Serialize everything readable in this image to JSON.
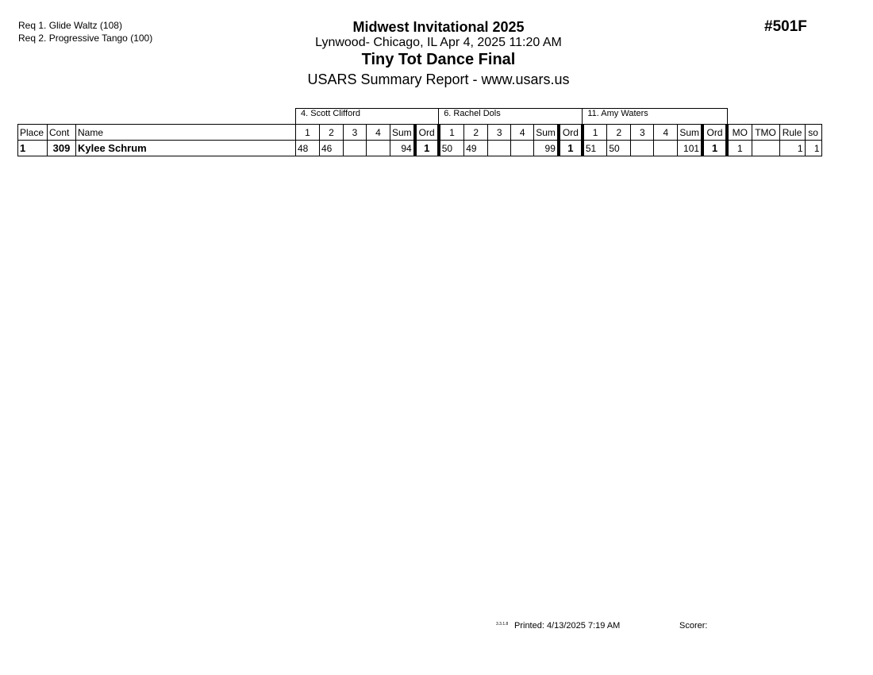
{
  "requirements": [
    "Req  1.  Glide Waltz (108)",
    "Req  2.  Progressive Tango (100)"
  ],
  "header": {
    "title": "Midwest Invitational 2025",
    "location": "Lynwood- Chicago, IL  Apr 4, 2025  11:20 AM",
    "event": "Tiny Tot Dance Final",
    "report": "USARS Summary Report - www.usars.us",
    "event_number": "#501F"
  },
  "table": {
    "judges": [
      "4.  Scott Clifford",
      "6.  Rachel Dols",
      "11.  Amy Waters"
    ],
    "columns": {
      "place": "Place",
      "cont": "Cont",
      "name": "Name",
      "scores": [
        "1",
        "2",
        "3",
        "4"
      ],
      "sum": "Sum",
      "ord": "Ord",
      "mo": "MO",
      "tmo": "TMO",
      "rule": "Rule",
      "so": "so"
    },
    "rows": [
      {
        "place": "1",
        "cont": "309",
        "name": "Kylee Schrum",
        "judges": [
          {
            "scores": [
              "48",
              "46",
              "",
              ""
            ],
            "sum": "94",
            "ord": "1"
          },
          {
            "scores": [
              "50",
              "49",
              "",
              ""
            ],
            "sum": "99",
            "ord": "1"
          },
          {
            "scores": [
              "51",
              "50",
              "",
              ""
            ],
            "sum": "101",
            "ord": "1"
          }
        ],
        "mo": "1",
        "tmo": "",
        "rule": "1",
        "so": "1"
      }
    ]
  },
  "footer": {
    "version": "3.3.1.8",
    "printed": "Printed:  4/13/2025  7:19 AM",
    "scorer": "Scorer:"
  }
}
